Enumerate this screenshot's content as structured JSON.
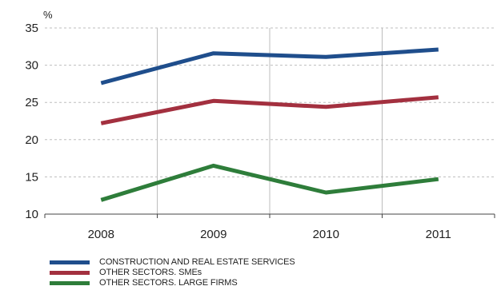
{
  "chart_data": {
    "type": "line",
    "unit_label": "%",
    "x": [
      "2008",
      "2009",
      "2010",
      "2011"
    ],
    "ylim": [
      10,
      35
    ],
    "yticks": [
      10,
      15,
      20,
      25,
      30,
      35
    ],
    "grid": true,
    "legend_position": "bottom-left",
    "series": [
      {
        "name": "CONSTRUCTION AND REAL ESTATE SERVICES",
        "color": "#1f4e8c",
        "values": [
          27.6,
          31.6,
          31.1,
          32.1
        ]
      },
      {
        "name": "OTHER SECTORS. SMEs",
        "color": "#a3303f",
        "values": [
          22.2,
          25.2,
          24.4,
          25.7
        ]
      },
      {
        "name": "OTHER SECTORS. LARGE FIRMS",
        "color": "#2e7d3a",
        "values": [
          11.9,
          16.5,
          12.9,
          14.7
        ]
      }
    ]
  }
}
